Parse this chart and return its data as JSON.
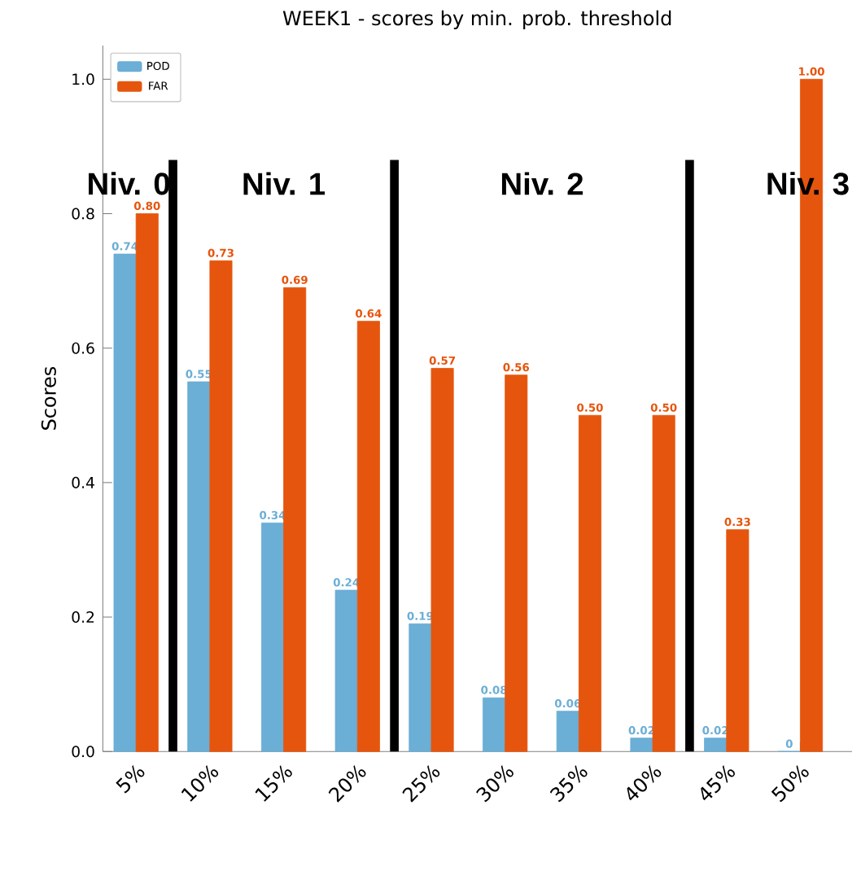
{
  "chart_data": {
    "type": "bar",
    "title": "WEEK1 - scores by min. prob. threshold",
    "ylabel": "Scores",
    "categories": [
      "5%",
      "10%",
      "15%",
      "20%",
      "25%",
      "30%",
      "35%",
      "40%",
      "45%",
      "50%"
    ],
    "series": [
      {
        "name": "POD",
        "color": "#6baed6",
        "values": [
          0.74,
          0.55,
          0.34,
          0.24,
          0.19,
          0.08,
          0.06,
          0.02,
          0.02,
          0
        ],
        "value_labels": [
          "0.74",
          "0.55",
          "0.34",
          "0.24",
          "0.19",
          "0.08",
          "0.06",
          "0.02",
          "0.02",
          "0"
        ]
      },
      {
        "name": "FAR",
        "color": "#e6550d",
        "values": [
          0.8,
          0.73,
          0.69,
          0.64,
          0.57,
          0.56,
          0.5,
          0.5,
          0.33,
          1.0
        ],
        "value_labels": [
          "0.80",
          "0.73",
          "0.69",
          "0.64",
          "0.57",
          "0.56",
          "0.50",
          "0.50",
          "0.33",
          "1.00"
        ]
      }
    ],
    "ylim": [
      0,
      1.05
    ],
    "yticks": [
      {
        "value": 0,
        "label": "0.0"
      },
      {
        "value": 0.2,
        "label": "0.2"
      },
      {
        "value": 0.4,
        "label": "0.4"
      },
      {
        "value": 0.6,
        "label": "0.6"
      },
      {
        "value": 0.8,
        "label": "0.8"
      },
      {
        "value": 1.0,
        "label": "1.0"
      }
    ],
    "annotations": [
      "Niv. 0",
      "Niv. 1",
      "Niv. 2",
      "Niv. 3"
    ],
    "legend": "top left",
    "grid": false
  }
}
